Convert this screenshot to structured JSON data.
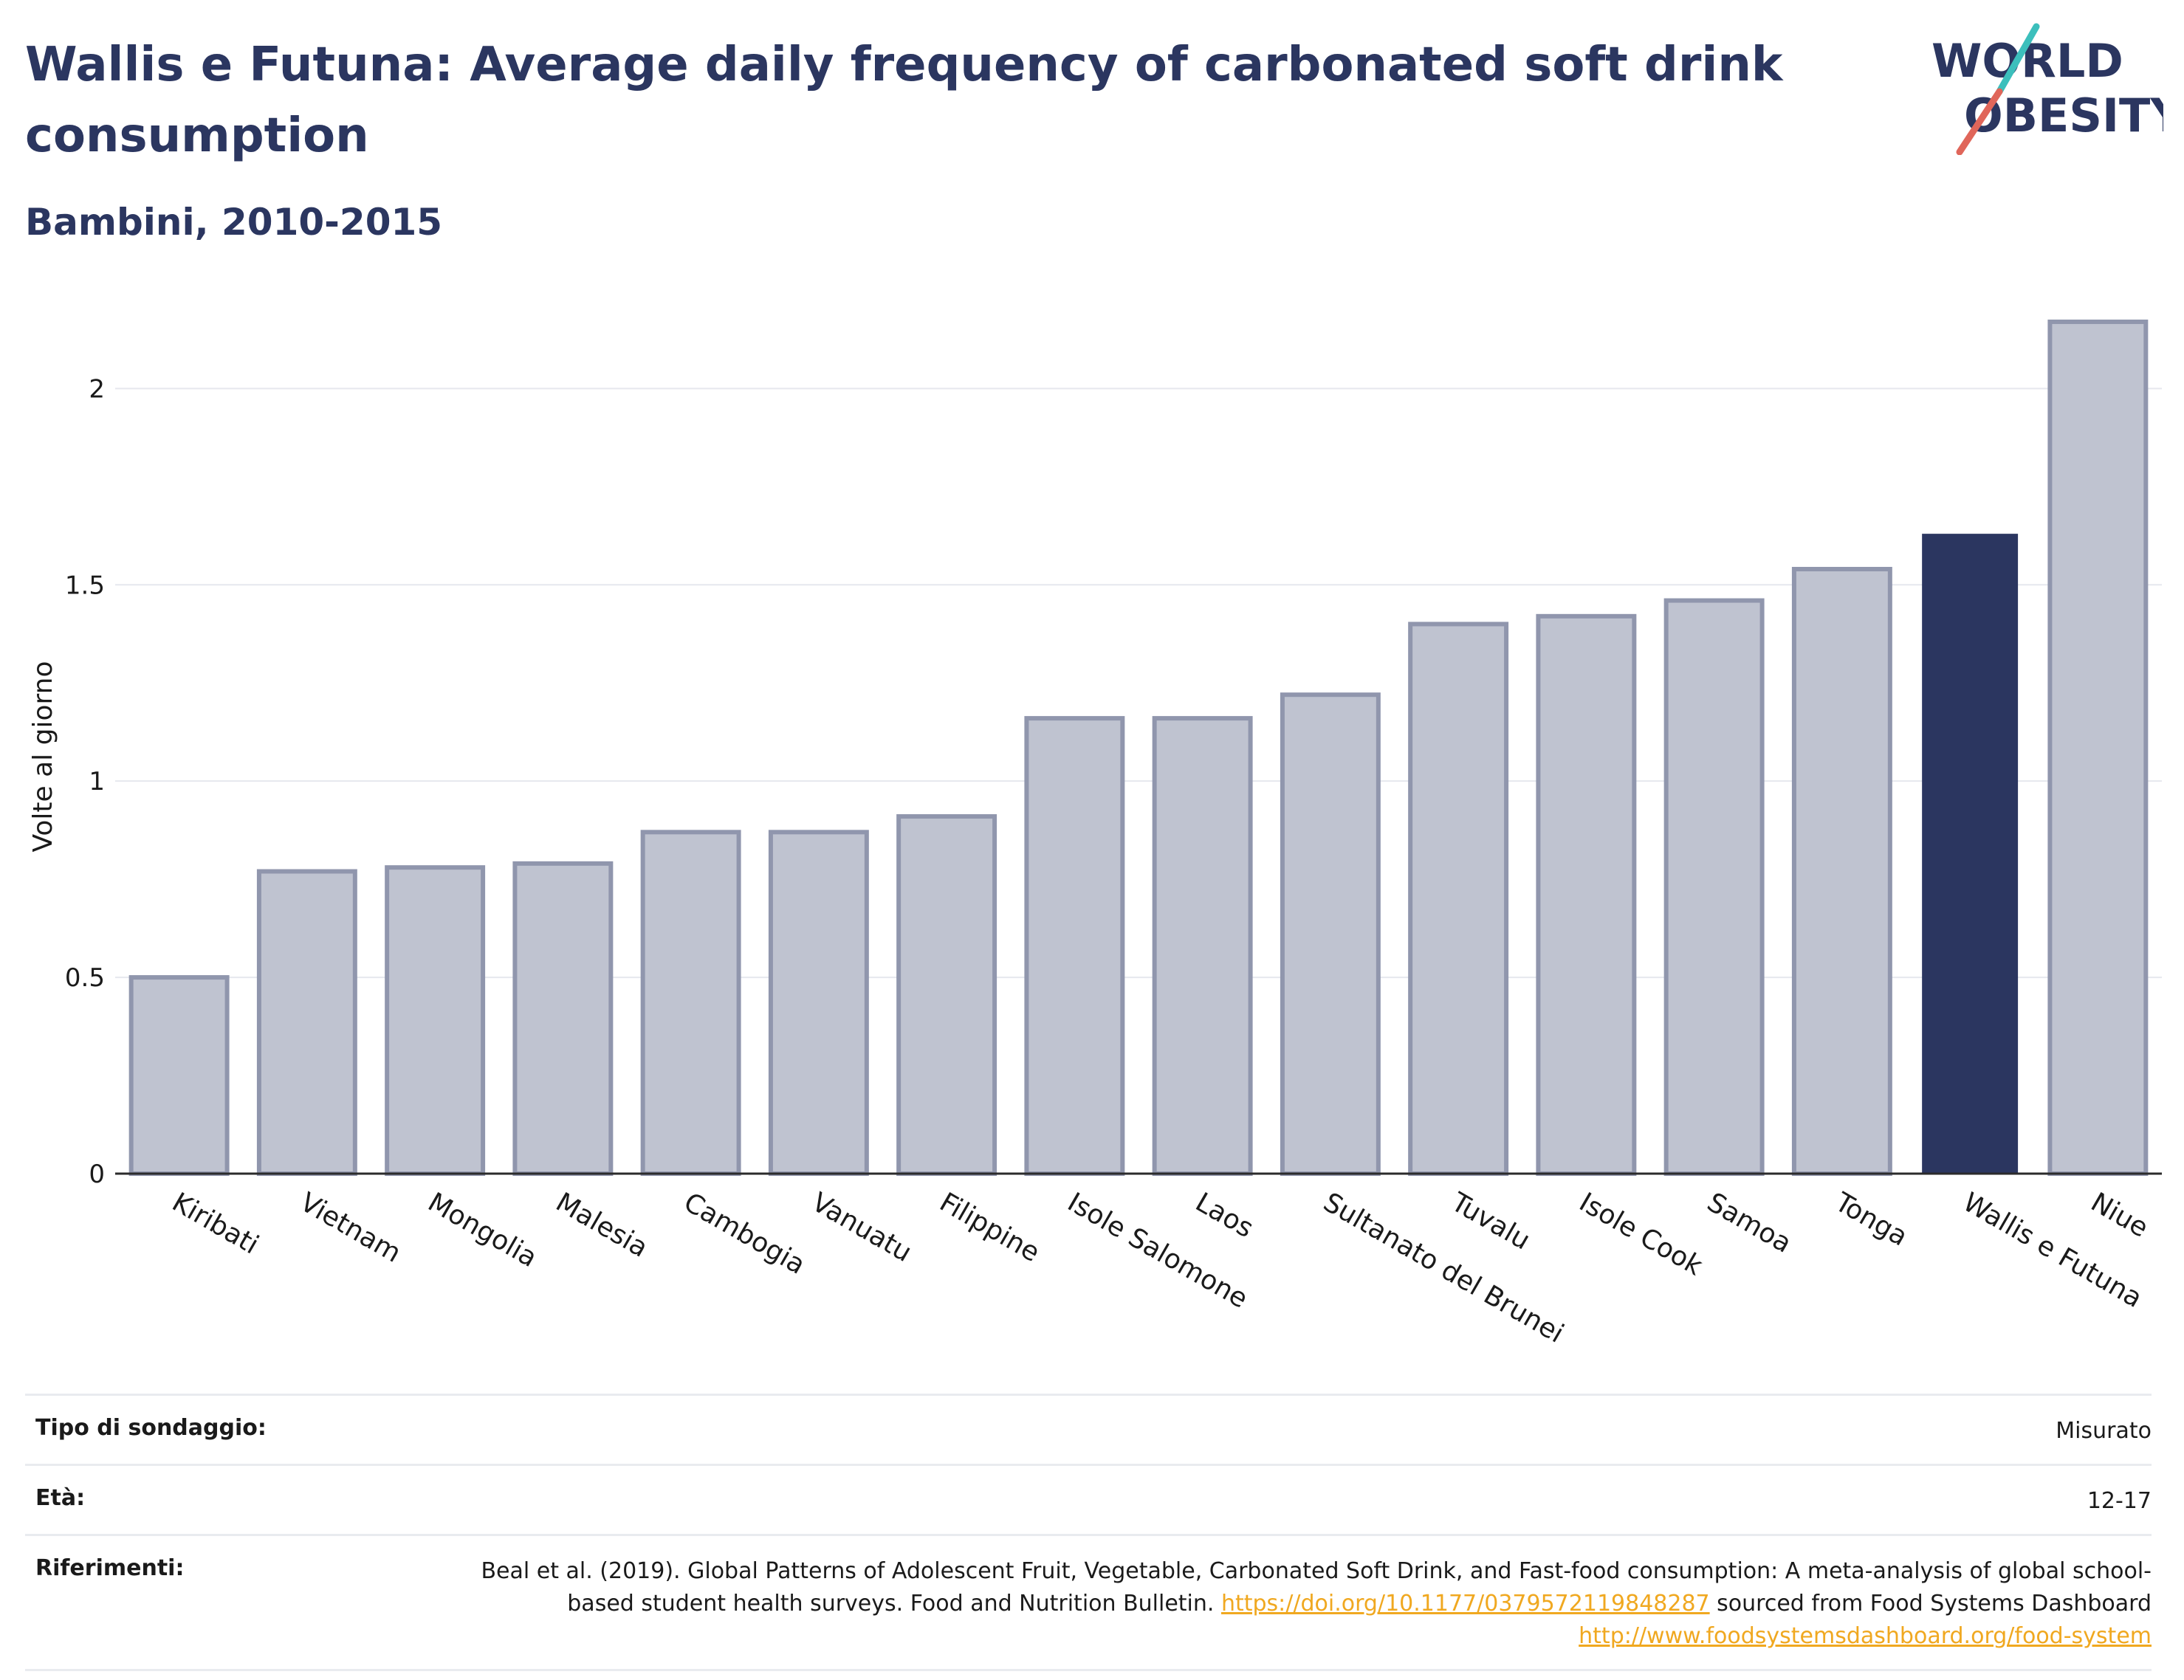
{
  "header": {
    "title": "Wallis e Futuna: Average daily frequency of carbonated soft drink consumption",
    "subtitle": "Bambini, 2010-2015"
  },
  "logo": {
    "line1": "WORLD",
    "line2": "OBESITY"
  },
  "colors": {
    "highlight": "#2b3660",
    "bar_fill": "#bfc3d0",
    "bar_stroke": "#9096ad",
    "accent_teal": "#3cbfbc",
    "accent_red": "#e0665a",
    "link": "#f0a820"
  },
  "chart_data": {
    "type": "bar",
    "categories": [
      "Kiribati",
      "Vietnam",
      "Mongolia",
      "Malesia",
      "Cambogia",
      "Vanuatu",
      "Filippine",
      "Isole Salomone",
      "Laos",
      "Sultanato del Brunei",
      "Tuvalu",
      "Isole Cook",
      "Samoa",
      "Tonga",
      "Wallis e Futuna",
      "Niue"
    ],
    "values": [
      0.5,
      0.77,
      0.78,
      0.79,
      0.87,
      0.87,
      0.91,
      1.16,
      1.16,
      1.22,
      1.4,
      1.42,
      1.46,
      1.54,
      1.63,
      2.17
    ],
    "highlight": "Wallis e Futuna",
    "ylabel": "Volte al giorno",
    "ylim": [
      0,
      2.2
    ],
    "yticks": [
      0,
      0.5,
      1,
      1.5,
      2
    ],
    "ytick_labels": [
      "0",
      "0.5",
      "1",
      "1.5",
      "2"
    ],
    "grid": true
  },
  "meta": {
    "survey_label": "Tipo di sondaggio:",
    "survey_value": "Misurato",
    "age_label": "Età:",
    "age_value": "12-17",
    "refs_label": "Riferimenti:",
    "refs_text_1": "Beal et al. (2019). Global Patterns of Adolescent Fruit, Vegetable, Carbonated Soft Drink, and Fast-food consumption: A meta-analysis of global school-based student health surveys. Food and Nutrition Bulletin. ",
    "refs_link_1": "https://doi.org/10.1177/0379572119848287",
    "refs_text_2": " sourced from Food Systems Dashboard ",
    "refs_link_2": "http://www.foodsystemsdashboard.org/food-system"
  }
}
